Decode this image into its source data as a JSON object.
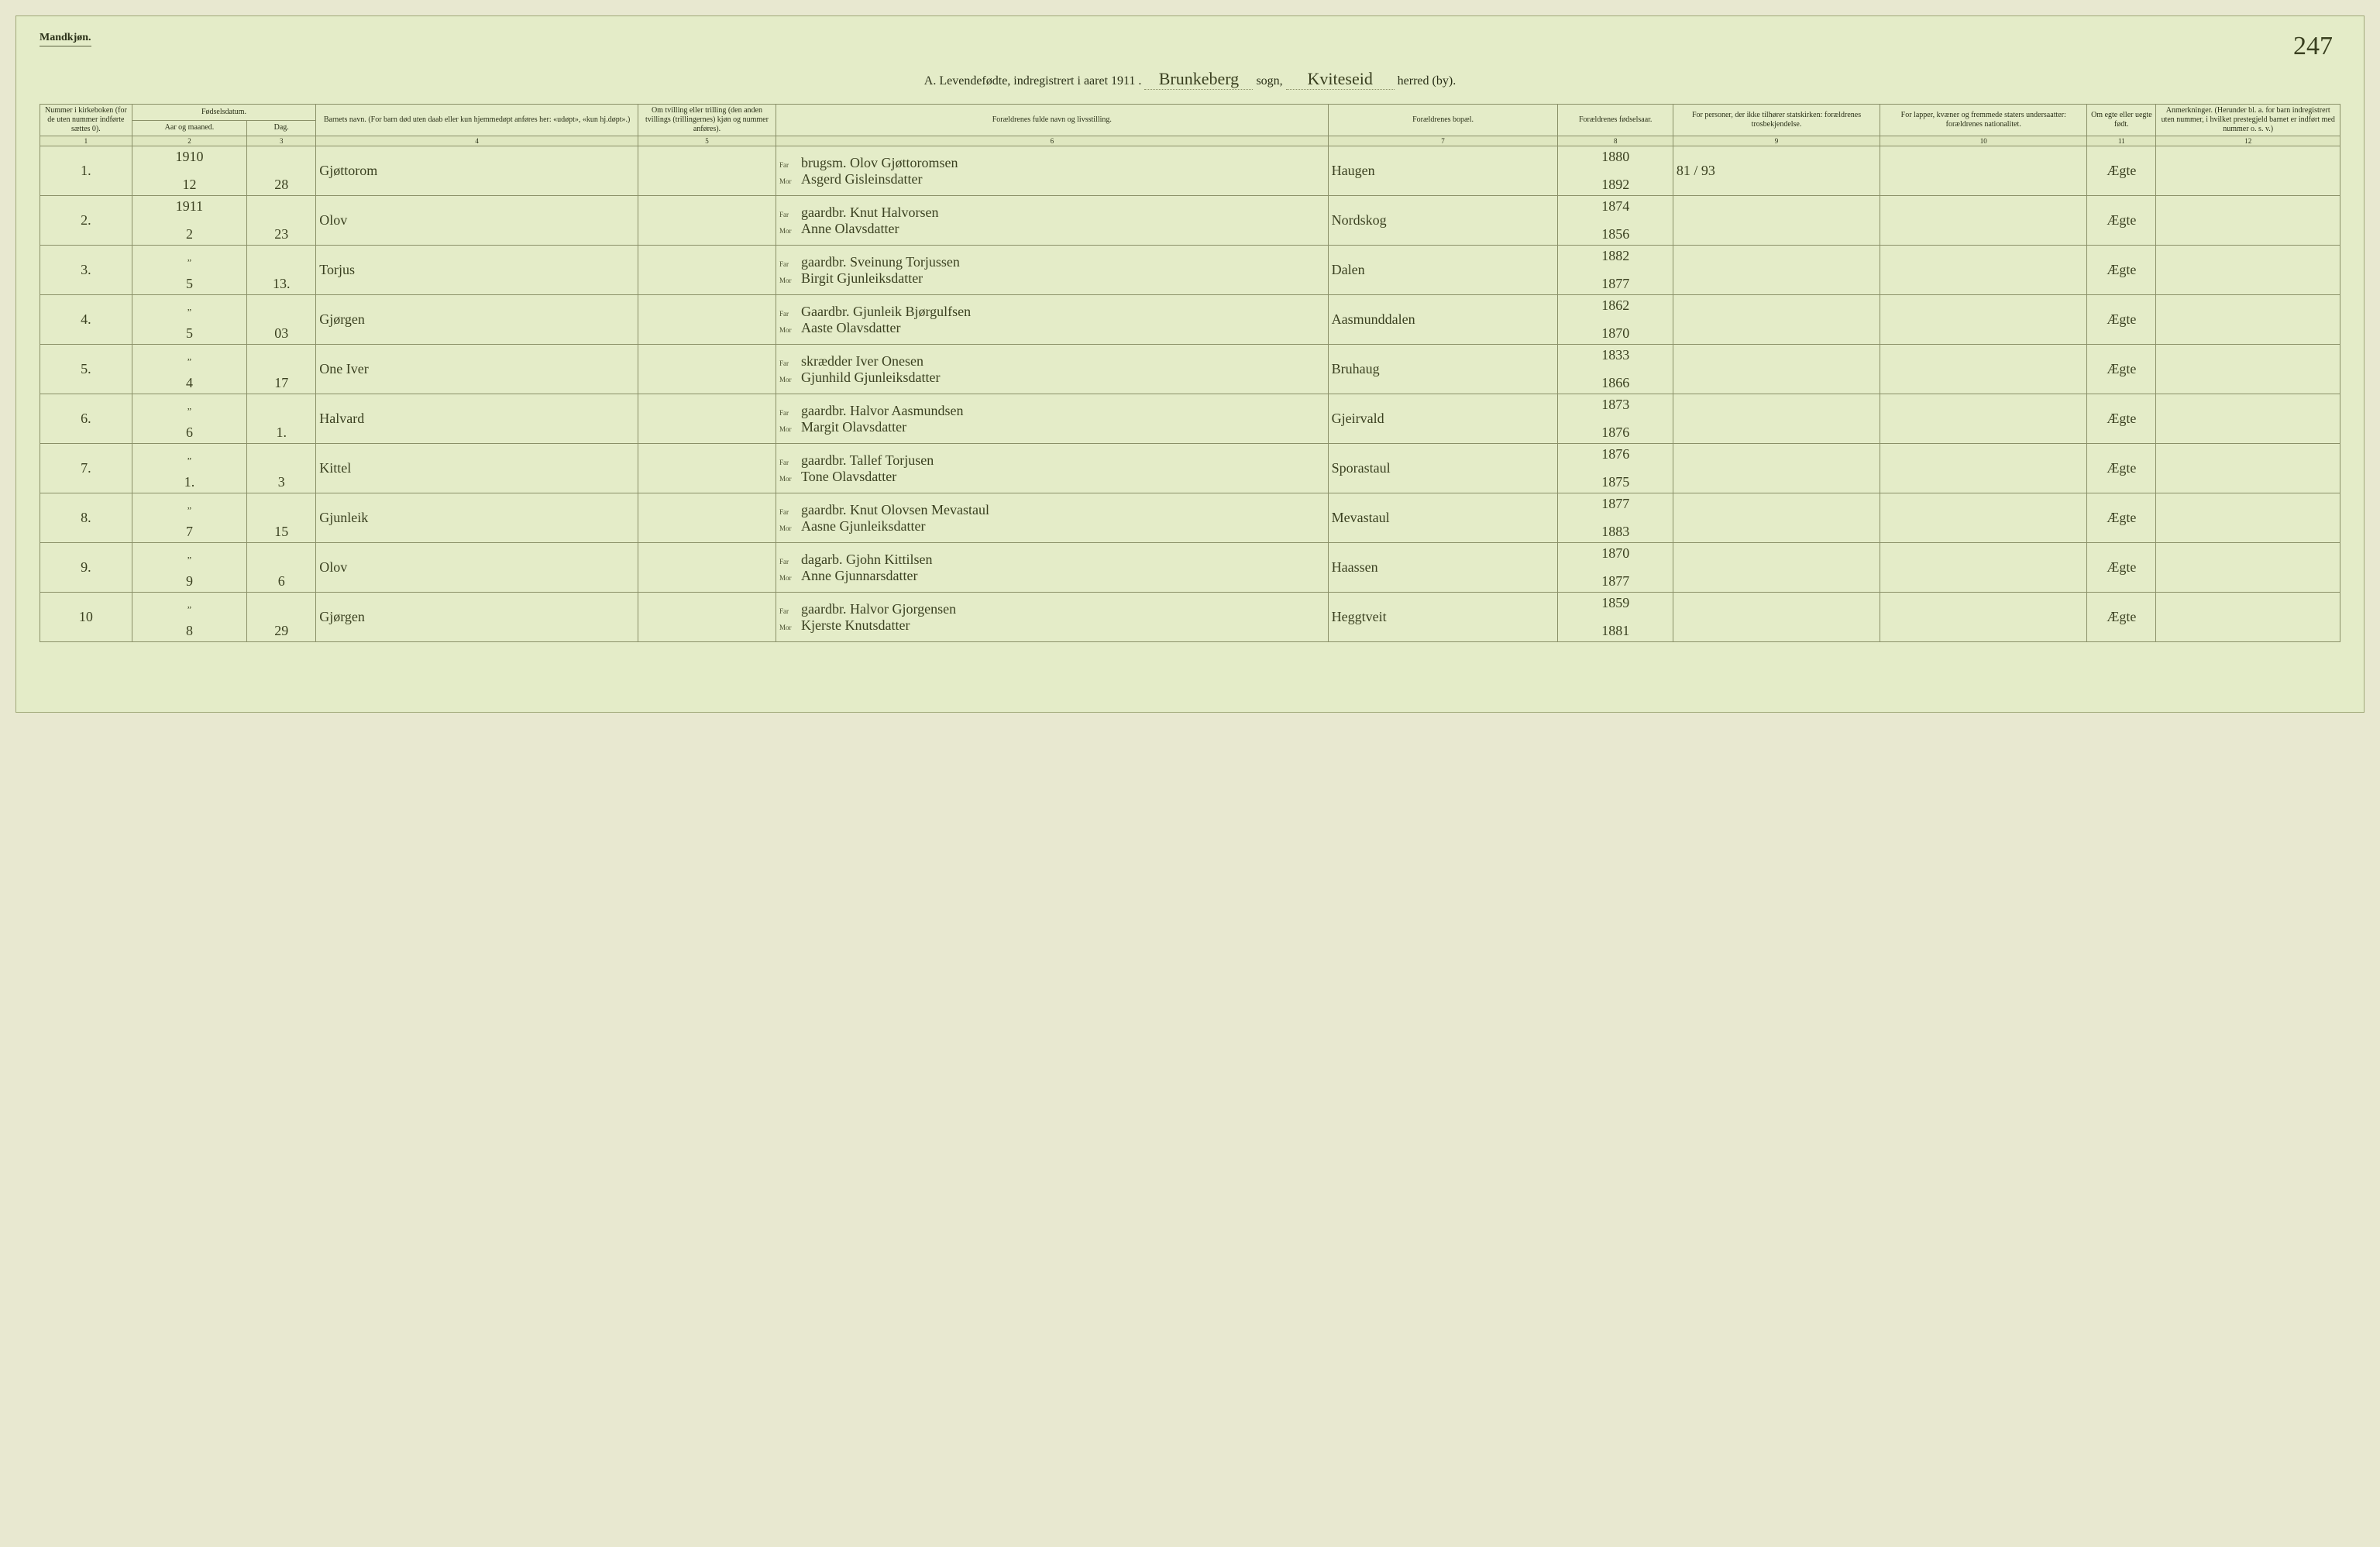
{
  "header": {
    "gender_label": "Mandkjøn.",
    "page_number_hand": "247",
    "title_prefix": "A.  Levendefødte, indregistrert i aaret 1911 .",
    "sogn_value": "Brunkeberg",
    "sogn_label": "sogn,",
    "herred_value": "Kviteseid",
    "herred_label": "herred (by)."
  },
  "columns": {
    "c1": "Nummer i kirke­boken (for de uten nummer indførte sættes 0).",
    "c2_group": "Fødselsdatum.",
    "c2a": "Aar og maaned.",
    "c2b": "Dag.",
    "c4": "Barnets navn.\n(For barn død uten daab eller kun hjemmedøpt anføres her: «udøpt», «kun hj.døpt».)",
    "c5": "Om tvilling eller trilling (den anden tvillings (trillingernes) kjøn og nummer anføres).",
    "c6": "Forældrenes fulde navn og livsstilling.",
    "c7": "Forældrenes bopæl.",
    "c8": "For­ældrenes fødsels­aar.",
    "c9": "For personer, der ikke tilhører statskirken: forældrenes trosbekjendelse.",
    "c10": "For lapper, kvæner og fremmede staters undersaatter: forældrenes nationalitet.",
    "c11": "Om egte eller uegte født.",
    "c12": "Anmerkninger.\n(Herunder bl. a. for barn indregistrert uten nummer, i hvilket prestegjeld barnet er indført med nummer o. s. v.)",
    "far": "Far",
    "mor": "Mor",
    "nums": [
      "1",
      "2",
      "3",
      "4",
      "5",
      "6",
      "7",
      "8",
      "9",
      "10",
      "11",
      "12"
    ]
  },
  "rows": [
    {
      "num": "1.",
      "year": "1910",
      "month": "12",
      "day": "28",
      "name": "Gjøttorom",
      "far": "brugsm. Olov Gjøttoromsen",
      "mor": "Asgerd Gisleinsdatter",
      "bopel": "Haugen",
      "faar": "1880",
      "maar": "1892",
      "note9": "81 / 93",
      "egte": "Ægte"
    },
    {
      "num": "2.",
      "year": "1911",
      "month": "2",
      "day": "23",
      "name": "Olov",
      "far": "gaardbr. Knut Halvorsen",
      "mor": "Anne Olavsdatter",
      "bopel": "Nordskog",
      "faar": "1874",
      "maar": "1856",
      "note9": "",
      "egte": "Ægte"
    },
    {
      "num": "3.",
      "year": "„",
      "month": "5",
      "day": "13.",
      "name": "Torjus",
      "far": "gaardbr. Sveinung Torjussen",
      "mor": "Birgit Gjunleiksdatter",
      "bopel": "Dalen",
      "faar": "1882",
      "maar": "1877",
      "note9": "",
      "egte": "Ægte"
    },
    {
      "num": "4.",
      "year": "„",
      "month": "5",
      "day": "03",
      "name": "Gjørgen",
      "far": "Gaardbr. Gjunleik Bjørgulfsen",
      "mor": "Aaste Olavsdatter",
      "bopel": "Aasmunddalen",
      "faar": "1862",
      "maar": "1870",
      "note9": "",
      "egte": "Ægte"
    },
    {
      "num": "5.",
      "year": "„",
      "month": "4",
      "day": "17",
      "name": "One Iver",
      "far": "skrædder Iver Onesen",
      "mor": "Gjunhild Gjunleiksdatter",
      "bopel": "Bruhaug",
      "faar": "1833",
      "maar": "1866",
      "note9": "",
      "egte": "Ægte"
    },
    {
      "num": "6.",
      "year": "„",
      "month": "6",
      "day": "1.",
      "name": "Halvard",
      "far": "gaardbr. Halvor Aasmundsen",
      "mor": "Margit Olavsdatter",
      "bopel": "Gjeirvald",
      "faar": "1873",
      "maar": "1876",
      "note9": "",
      "egte": "Ægte"
    },
    {
      "num": "7.",
      "year": "„",
      "month": "1.",
      "day": "3",
      "name": "Kittel",
      "far": "gaardbr. Tallef Torjusen",
      "mor": "Tone Olavsdatter",
      "bopel": "Sporastaul",
      "faar": "1876",
      "maar": "1875",
      "note9": "",
      "egte": "Ægte"
    },
    {
      "num": "8.",
      "year": "„",
      "month": "7",
      "day": "15",
      "name": "Gjunleik",
      "far": "gaardbr. Knut Olovsen Mevastaul",
      "mor": "Aasne Gjunleiksdatter",
      "bopel": "Mevastaul",
      "faar": "1877",
      "maar": "1883",
      "note9": "",
      "egte": "Ægte"
    },
    {
      "num": "9.",
      "year": "„",
      "month": "9",
      "day": "6",
      "name": "Olov",
      "far": "dagarb. Gjohn Kittilsen",
      "mor": "Anne Gjunnarsdatter",
      "bopel": "Haassen",
      "faar": "1870",
      "maar": "1877",
      "note9": "",
      "egte": "Ægte"
    },
    {
      "num": "10",
      "year": "„",
      "month": "8",
      "day": "29",
      "name": "Gjørgen",
      "far": "gaardbr. Halvor Gjorgensen",
      "mor": "Kjerste Knutsdatter",
      "bopel": "Heggtveit",
      "faar": "1859",
      "maar": "1881",
      "note9": "",
      "egte": "Ægte"
    }
  ],
  "colors": {
    "paper": "#e4ecc8",
    "line": "#8a9068",
    "ink": "#3a4020",
    "print": "#2a3018"
  },
  "widths_pct": [
    4,
    5,
    3,
    14,
    6,
    24,
    10,
    5,
    9,
    9,
    3,
    8
  ]
}
